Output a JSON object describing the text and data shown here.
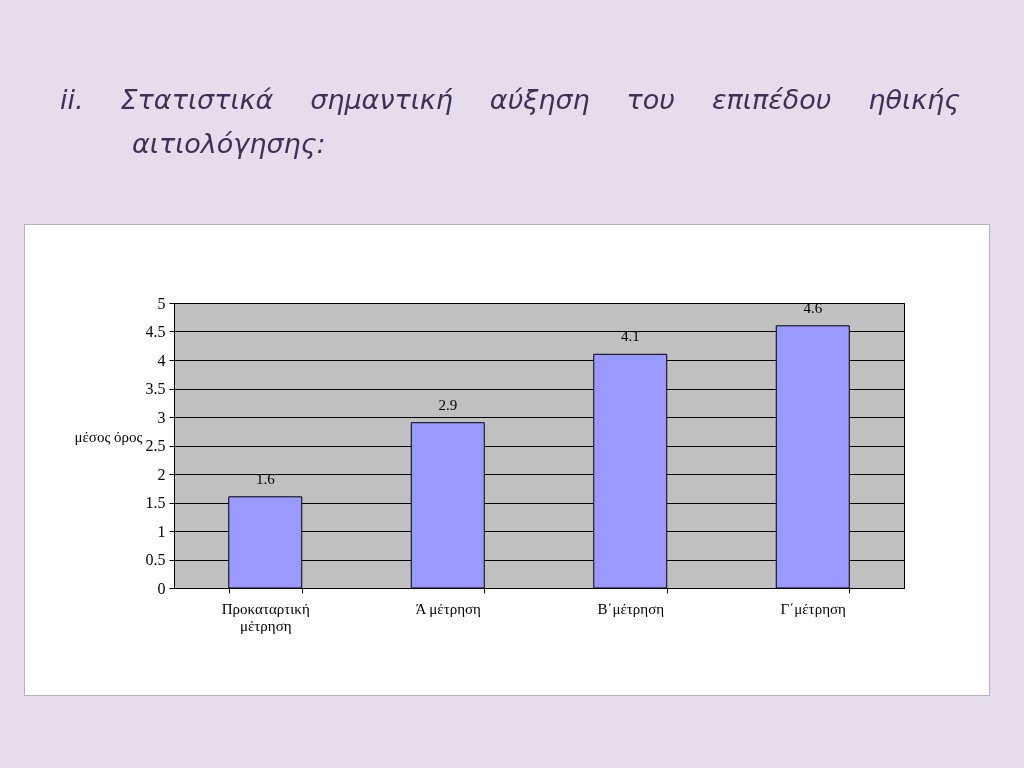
{
  "chart_data": {
    "type": "bar",
    "title": "ii. Στατιστικά σημαντική αύξηση του επιπέδου ηθικής αιτιολόγησης:",
    "ylabel": "μέσος όρος",
    "categories": [
      "Προκαταρτική μέτρηση",
      "Ά μέτρηση",
      "Β΄μέτρηση",
      "Γ΄μέτρηση"
    ],
    "values": [
      1.6,
      2.9,
      4.1,
      4.6
    ],
    "color": "#9999ff",
    "ylim": [
      0,
      5
    ],
    "yticks": [
      0,
      0.5,
      1,
      1.5,
      2,
      2.5,
      3,
      3.5,
      4,
      4.5,
      5
    ],
    "grid": true,
    "data_labels": true
  }
}
